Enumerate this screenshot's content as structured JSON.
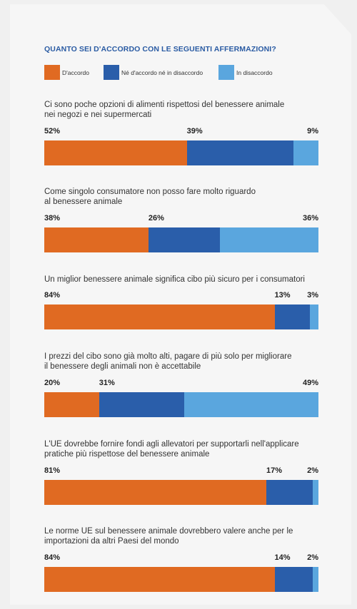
{
  "title": "QUANTO SEI D'ACCORDO CON LE SEGUENTI AFFERMAZIONI?",
  "colors": {
    "agree": "#e06a22",
    "neutral": "#2a5eaa",
    "disagree": "#5aa6de",
    "title": "#2a5ba3"
  },
  "chart_data": {
    "type": "bar",
    "orientation": "horizontal-stacked-100",
    "title": "QUANTO SEI D'ACCORDO CON LE SEGUENTI AFFERMAZIONI?",
    "legend_position": "top",
    "xlim": [
      0,
      100
    ],
    "unit": "%",
    "series": [
      {
        "name": "D'accordo",
        "color": "#e06a22"
      },
      {
        "name": "Né d'accordo né in disaccordo",
        "color": "#2a5eaa"
      },
      {
        "name": "In disaccordo",
        "color": "#5aa6de"
      }
    ],
    "statements": [
      {
        "line1": "Ci sono poche opzioni di alimenti rispettosi del benessere animale",
        "line2": "nei negozi e nei supermercati",
        "values": [
          52,
          39,
          9
        ],
        "labels": [
          "52%",
          "39%",
          "9%"
        ]
      },
      {
        "line1": "Come singolo consumatore non posso fare molto riguardo",
        "line2": "al benessere animale",
        "values": [
          38,
          26,
          36
        ],
        "labels": [
          "38%",
          "26%",
          "36%"
        ]
      },
      {
        "line1": "Un miglior benessere animale significa cibo più sicuro per i consumatori",
        "line2": "",
        "values": [
          84,
          13,
          3
        ],
        "labels": [
          "84%",
          "13%",
          "3%"
        ]
      },
      {
        "line1": "I prezzi del cibo sono già molto alti, pagare di più solo per migliorare",
        "line2": "il benessere degli animali non è accettabile",
        "values": [
          20,
          31,
          49
        ],
        "labels": [
          "20%",
          "31%",
          "49%"
        ]
      },
      {
        "line1": "L'UE dovrebbe fornire fondi agli allevatori per supportarli nell'applicare",
        "line2": "pratiche più rispettose del benessere animale",
        "values": [
          81,
          17,
          2
        ],
        "labels": [
          "81%",
          "17%",
          "2%"
        ]
      },
      {
        "line1": "Le norme UE sul benessere animale dovrebbero valere anche per le",
        "line2": "importazioni da altri Paesi del mondo",
        "values": [
          84,
          14,
          2
        ],
        "labels": [
          "84%",
          "14%",
          "2%"
        ]
      }
    ]
  }
}
